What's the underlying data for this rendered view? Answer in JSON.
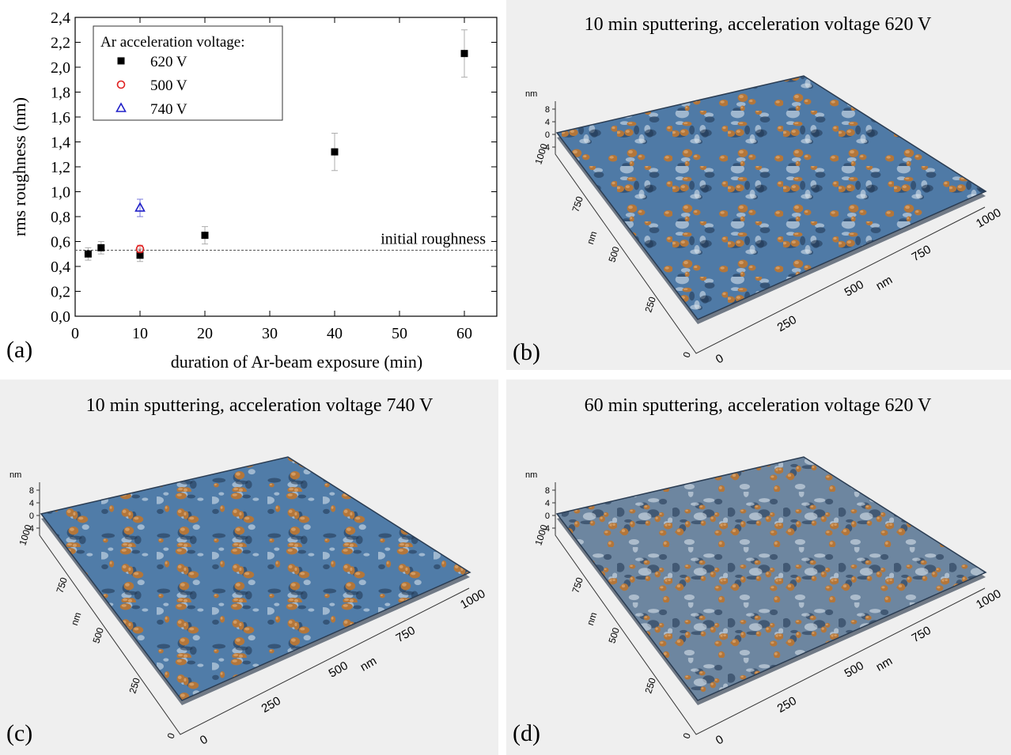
{
  "chart_data": {
    "type": "scatter",
    "panel_label": "(a)",
    "xlabel": "duration of Ar-beam exposure (min)",
    "ylabel": "rms roughness (nm)",
    "xlim": [
      0,
      65
    ],
    "ylim": [
      0,
      2.4
    ],
    "xticks": [
      0,
      10,
      20,
      30,
      40,
      50,
      60
    ],
    "yticks": [
      {
        "value": 0,
        "label": "0,0"
      },
      {
        "value": 0.2,
        "label": "0,2"
      },
      {
        "value": 0.4,
        "label": "0,4"
      },
      {
        "value": 0.6,
        "label": "0,6"
      },
      {
        "value": 0.8,
        "label": "0,8"
      },
      {
        "value": 1.0,
        "label": "1,0"
      },
      {
        "value": 1.2,
        "label": "1,2"
      },
      {
        "value": 1.4,
        "label": "1,4"
      },
      {
        "value": 1.6,
        "label": "1,6"
      },
      {
        "value": 1.8,
        "label": "1,8"
      },
      {
        "value": 2.0,
        "label": "2,0"
      },
      {
        "value": 2.2,
        "label": "2,2"
      },
      {
        "value": 2.4,
        "label": "2,4"
      }
    ],
    "legend_title": "Ar acceleration voltage:",
    "legend": "upper left",
    "series": [
      {
        "name": "620 V",
        "color": "#000000",
        "marker": "square",
        "x": [
          2,
          4,
          10,
          20,
          40,
          60
        ],
        "values": [
          0.5,
          0.55,
          0.49,
          0.65,
          1.32,
          2.11
        ],
        "errors": [
          0.05,
          0.05,
          0.05,
          0.07,
          0.15,
          0.19
        ]
      },
      {
        "name": "500 V",
        "color": "#e02020",
        "marker": "circle",
        "x": [
          10
        ],
        "values": [
          0.54
        ],
        "errors": [
          0.03
        ]
      },
      {
        "name": "740 V",
        "color": "#2020c8",
        "marker": "triangle",
        "x": [
          10
        ],
        "values": [
          0.87
        ],
        "errors": [
          0.07
        ]
      }
    ],
    "reference_line": {
      "value": 0.53,
      "label": "initial roughness"
    }
  },
  "panels": [
    {
      "label": "(b)",
      "title": "10 min sputtering, acceleration voltage 620 V",
      "z_unit": "nm",
      "z_ticks": [
        8,
        4,
        0,
        -4
      ],
      "y_unit": "nm",
      "y_ticks": [
        1000,
        750,
        500,
        250,
        0
      ],
      "x_unit": "nm",
      "x_ticks": [
        0,
        250,
        500,
        750,
        1000
      ]
    },
    {
      "label": "(c)",
      "title": "10 min sputtering, acceleration voltage 740 V",
      "z_unit": "nm",
      "z_ticks": [
        8,
        4,
        0,
        -4
      ],
      "y_unit": "nm",
      "y_ticks": [
        1000,
        750,
        500,
        250,
        0
      ],
      "x_unit": "nm",
      "x_ticks": [
        0,
        250,
        500,
        750,
        1000
      ]
    },
    {
      "label": "(d)",
      "title": "60 min sputtering, acceleration voltage 620 V",
      "z_unit": "nm",
      "z_ticks": [
        8,
        4,
        0,
        -4
      ],
      "y_unit": "nm",
      "y_ticks": [
        1000,
        750,
        500,
        250,
        0
      ],
      "x_unit": "nm",
      "x_ticks": [
        0,
        250,
        500,
        750,
        1000
      ]
    }
  ]
}
